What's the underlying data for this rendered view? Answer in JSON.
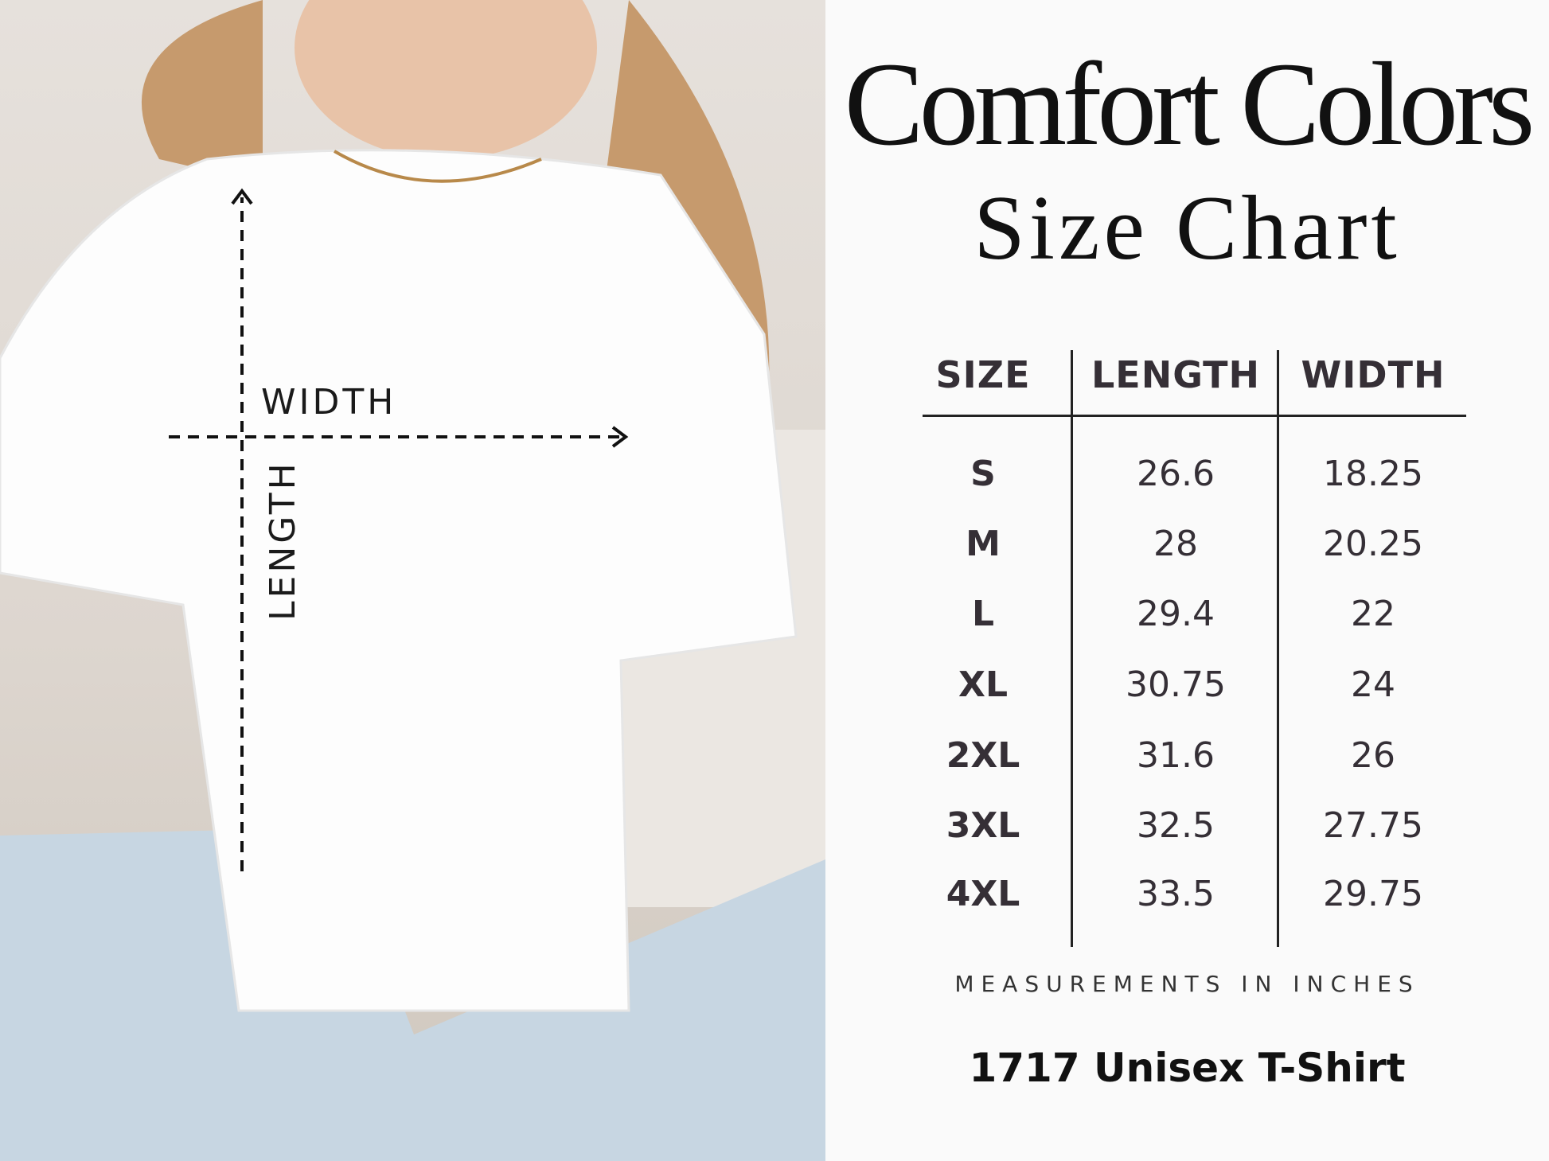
{
  "photo": {
    "description_icon": "model-wearing-white-tshirt",
    "width_label": "WIDTH",
    "length_label": "LENGTH"
  },
  "header": {
    "brand": "Comfort Colors",
    "subtitle": "Size Chart"
  },
  "table": {
    "columns": [
      "SIZE",
      "LENGTH",
      "WIDTH"
    ],
    "rows": [
      [
        "S",
        "26.6",
        "18.25"
      ],
      [
        "M",
        "28",
        "20.25"
      ],
      [
        "L",
        "29.4",
        "22"
      ],
      [
        "XL",
        "30.75",
        "24"
      ],
      [
        "2XL",
        "31.6",
        "26"
      ],
      [
        "3XL",
        "32.5",
        "27.75"
      ],
      [
        "4XL",
        "33.5",
        "29.75"
      ]
    ]
  },
  "note": "MEASUREMENTS IN INCHES",
  "product": "1717 Unisex T-Shirt",
  "colors": {
    "text": "#352f36",
    "background": "#fafafa"
  }
}
